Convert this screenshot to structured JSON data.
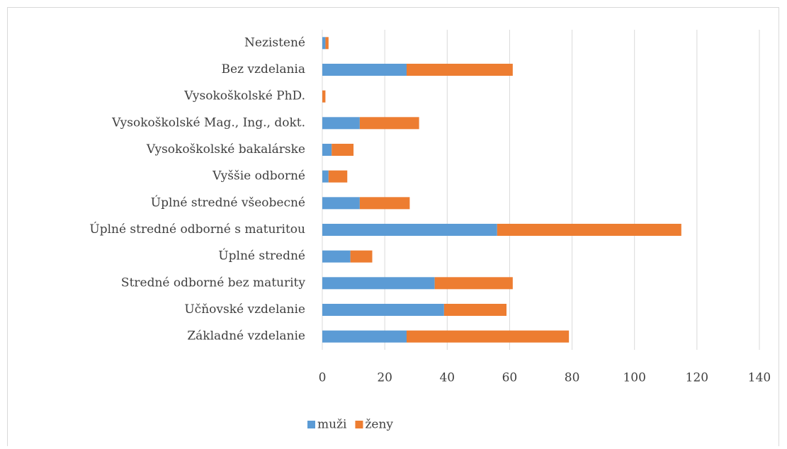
{
  "chart_data": {
    "type": "stacked-barh",
    "categories": [
      "Nezistené",
      "Bez vzdelania",
      "Vysokoškolské PhD.",
      "Vysokoškolské Mag., Ing., dokt.",
      "Vysokoškolské bakalárske",
      "Vyššie odborné",
      "Úplné stredné všeobecné",
      "Úplné stredné odborné s maturitou",
      "Úplné stredné",
      "Stredné odborné bez maturity",
      "Učňovské vzdelanie",
      "Základné vzdelanie"
    ],
    "series": [
      {
        "name": "muži",
        "color": "#5b9bd5",
        "values": [
          1,
          27,
          0,
          12,
          3,
          2,
          12,
          56,
          9,
          36,
          39,
          27
        ]
      },
      {
        "name": "ženy",
        "color": "#ed7d31",
        "values": [
          1,
          34,
          1,
          19,
          7,
          6,
          16,
          59,
          7,
          25,
          20,
          52
        ]
      }
    ],
    "xlim": [
      0,
      140
    ],
    "xticks": [
      0,
      20,
      40,
      60,
      80,
      100,
      120,
      140
    ],
    "grid": true,
    "legend": "bottom"
  }
}
